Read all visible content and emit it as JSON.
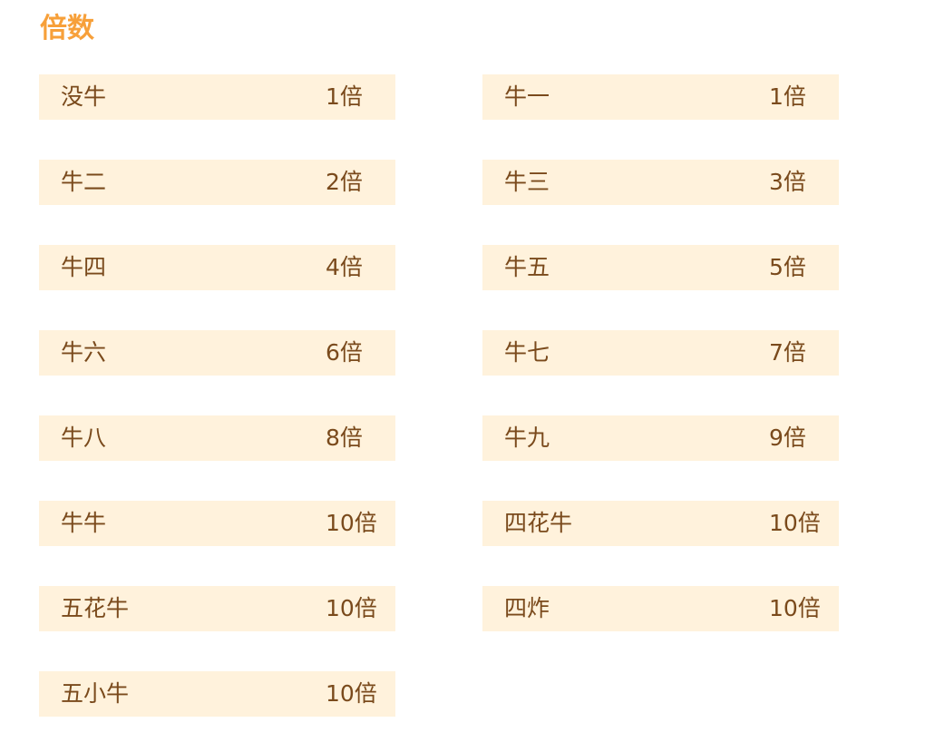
{
  "title": "倍数",
  "items": [
    {
      "name": "没牛",
      "value": "1倍"
    },
    {
      "name": "牛一",
      "value": "1倍"
    },
    {
      "name": "牛二",
      "value": "2倍"
    },
    {
      "name": "牛三",
      "value": "3倍"
    },
    {
      "name": "牛四",
      "value": "4倍"
    },
    {
      "name": "牛五",
      "value": "5倍"
    },
    {
      "name": "牛六",
      "value": "6倍"
    },
    {
      "name": "牛七",
      "value": "7倍"
    },
    {
      "name": "牛八",
      "value": "8倍"
    },
    {
      "name": "牛九",
      "value": "9倍"
    },
    {
      "name": "牛牛",
      "value": "10倍"
    },
    {
      "name": "四花牛",
      "value": "10倍"
    },
    {
      "name": "五花牛",
      "value": "10倍"
    },
    {
      "name": "四炸",
      "value": "10倍"
    },
    {
      "name": "五小牛",
      "value": "10倍"
    }
  ]
}
